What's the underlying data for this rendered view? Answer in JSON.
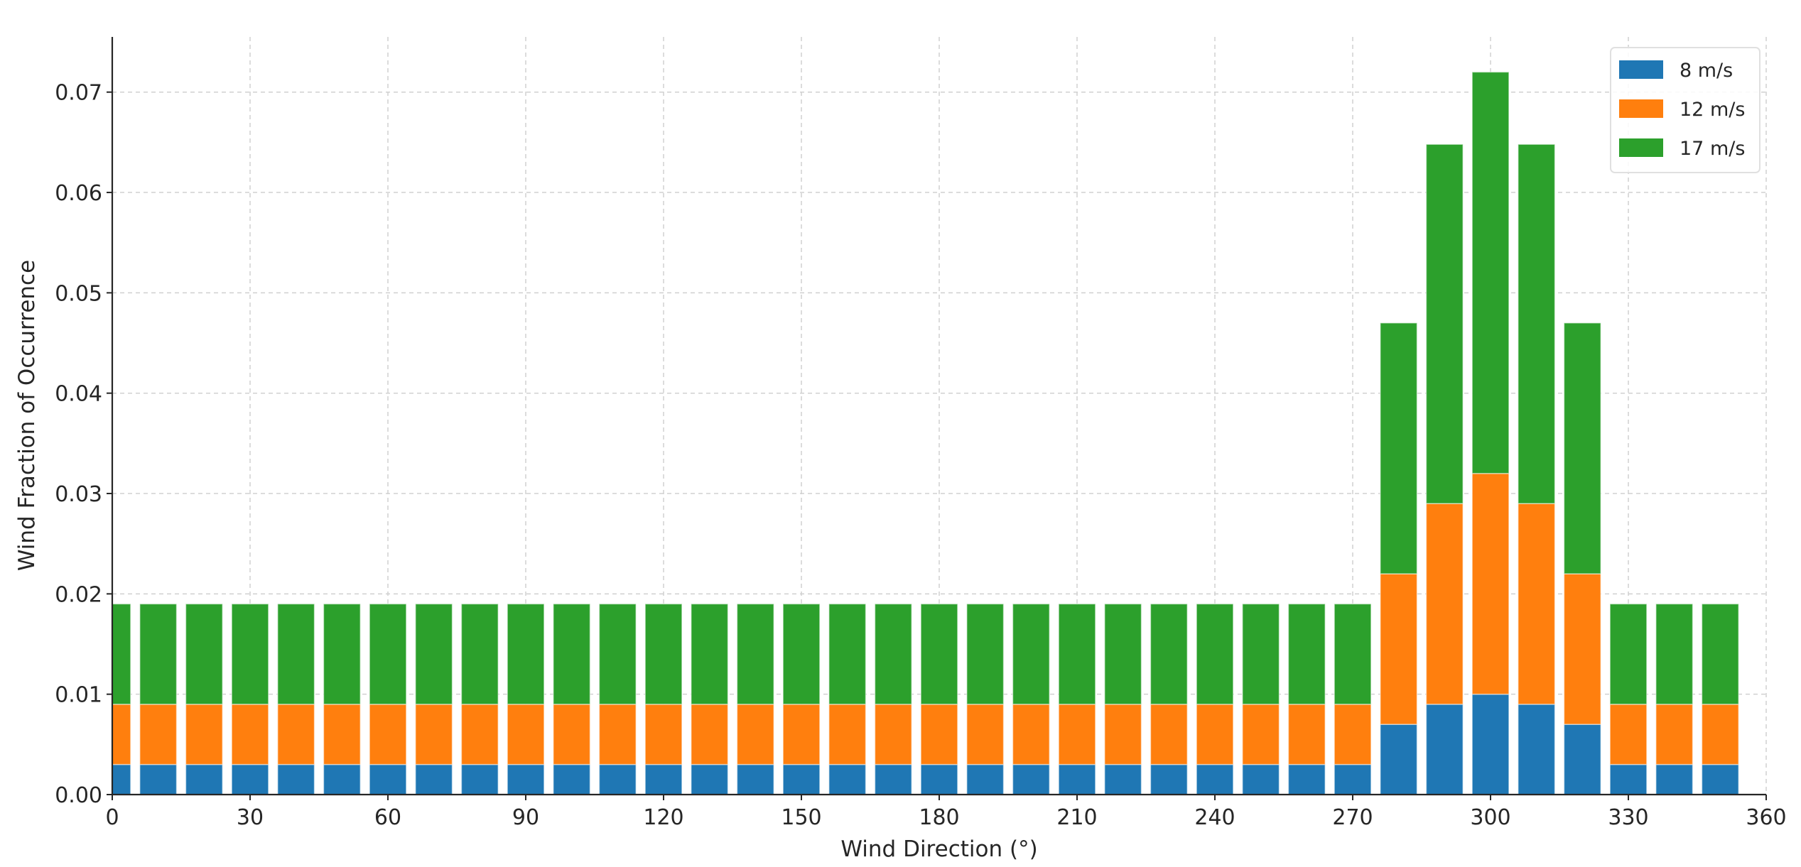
{
  "chart_data": {
    "type": "bar",
    "stacked": true,
    "xlabel": "Wind Direction (°)",
    "ylabel": "Wind Fraction of Occurrence",
    "xlim": [
      0,
      360
    ],
    "ylim": [
      0,
      0.0755
    ],
    "bar_width": 8,
    "xticks": [
      0,
      30,
      60,
      90,
      120,
      150,
      180,
      210,
      240,
      270,
      300,
      330,
      360
    ],
    "yticks": [
      "0.00",
      "0.01",
      "0.02",
      "0.03",
      "0.04",
      "0.05",
      "0.06",
      "0.07"
    ],
    "grid": true,
    "legend_position": "top-right",
    "x": [
      0,
      10,
      20,
      30,
      40,
      50,
      60,
      70,
      80,
      90,
      100,
      110,
      120,
      130,
      140,
      150,
      160,
      170,
      180,
      190,
      200,
      210,
      220,
      230,
      240,
      250,
      260,
      270,
      280,
      290,
      300,
      310,
      320,
      330,
      340,
      350
    ],
    "series": [
      {
        "name": "8 m/s",
        "color": "#1f77b4",
        "values": [
          0.003,
          0.003,
          0.003,
          0.003,
          0.003,
          0.003,
          0.003,
          0.003,
          0.003,
          0.003,
          0.003,
          0.003,
          0.003,
          0.003,
          0.003,
          0.003,
          0.003,
          0.003,
          0.003,
          0.003,
          0.003,
          0.003,
          0.003,
          0.003,
          0.003,
          0.003,
          0.003,
          0.003,
          0.007,
          0.009,
          0.01,
          0.009,
          0.007,
          0.003,
          0.003,
          0.003
        ]
      },
      {
        "name": "12 m/s",
        "color": "#ff7f0e",
        "values": [
          0.006,
          0.006,
          0.006,
          0.006,
          0.006,
          0.006,
          0.006,
          0.006,
          0.006,
          0.006,
          0.006,
          0.006,
          0.006,
          0.006,
          0.006,
          0.006,
          0.006,
          0.006,
          0.006,
          0.006,
          0.006,
          0.006,
          0.006,
          0.006,
          0.006,
          0.006,
          0.006,
          0.006,
          0.015,
          0.02,
          0.022,
          0.02,
          0.015,
          0.006,
          0.006,
          0.006
        ]
      },
      {
        "name": "17 m/s",
        "color": "#2ca02c",
        "values": [
          0.01,
          0.01,
          0.01,
          0.01,
          0.01,
          0.01,
          0.01,
          0.01,
          0.01,
          0.01,
          0.01,
          0.01,
          0.01,
          0.01,
          0.01,
          0.01,
          0.01,
          0.01,
          0.01,
          0.01,
          0.01,
          0.01,
          0.01,
          0.01,
          0.01,
          0.01,
          0.01,
          0.01,
          0.025,
          0.0358,
          0.04,
          0.0358,
          0.025,
          0.01,
          0.01,
          0.01
        ]
      }
    ]
  }
}
